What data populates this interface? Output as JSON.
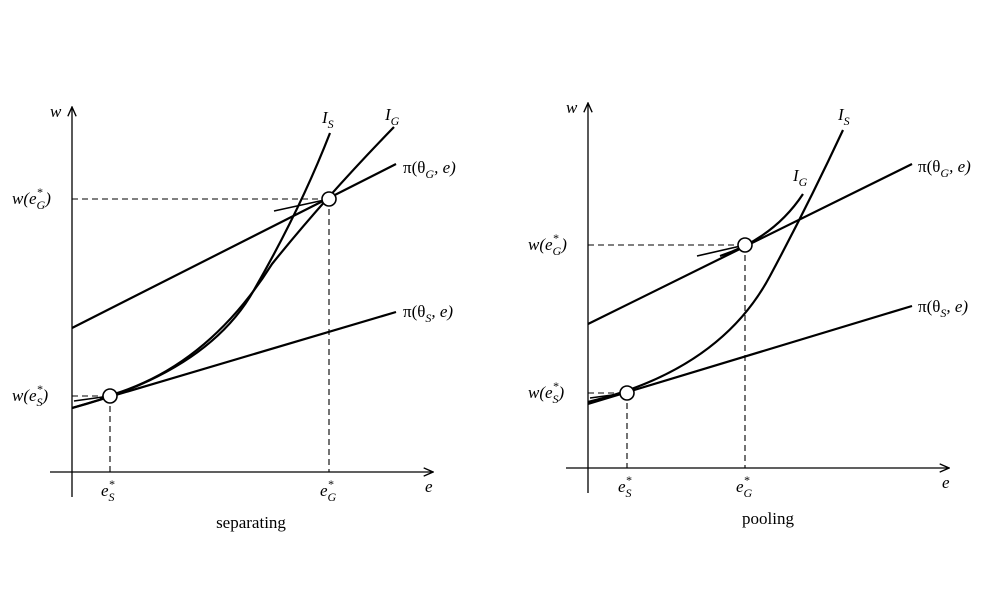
{
  "panels": {
    "left": {
      "caption": "separating",
      "axis_y": "w",
      "axis_x": "e",
      "curve_is": "I",
      "curve_is_sub": "S",
      "curve_ig": "I",
      "curve_ig_sub": "G",
      "line_g": {
        "pi": "π(θ",
        "sub": "G",
        "rest": ", e)"
      },
      "line_s": {
        "pi": "π(θ",
        "sub": "S",
        "rest": ", e)"
      },
      "wg": {
        "w": "w(e",
        "sup": "*",
        "sub": "G",
        "close": ")"
      },
      "ws": {
        "w": "w(e",
        "sup": "*",
        "sub": "S",
        "close": ")"
      },
      "es": {
        "e": "e",
        "sup": "*",
        "sub": "S"
      },
      "eg": {
        "e": "e",
        "sup": "*",
        "sub": "G"
      }
    },
    "right": {
      "caption": "pooling",
      "axis_y": "w",
      "axis_x": "e",
      "curve_is": "I",
      "curve_is_sub": "S",
      "curve_ig": "I",
      "curve_ig_sub": "G",
      "line_g": {
        "pi": "π(θ",
        "sub": "G",
        "rest": ", e)"
      },
      "line_s": {
        "pi": "π(θ",
        "sub": "S",
        "rest": ", e)"
      },
      "wg": {
        "w": "w(e",
        "sup": "*",
        "sub": "G",
        "close": ")"
      },
      "ws": {
        "w": "w(e",
        "sup": "*",
        "sub": "S",
        "close": ")"
      },
      "es": {
        "e": "e",
        "sup": "*",
        "sub": "S"
      },
      "eg": {
        "e": "e",
        "sup": "*",
        "sub": "G"
      }
    }
  }
}
